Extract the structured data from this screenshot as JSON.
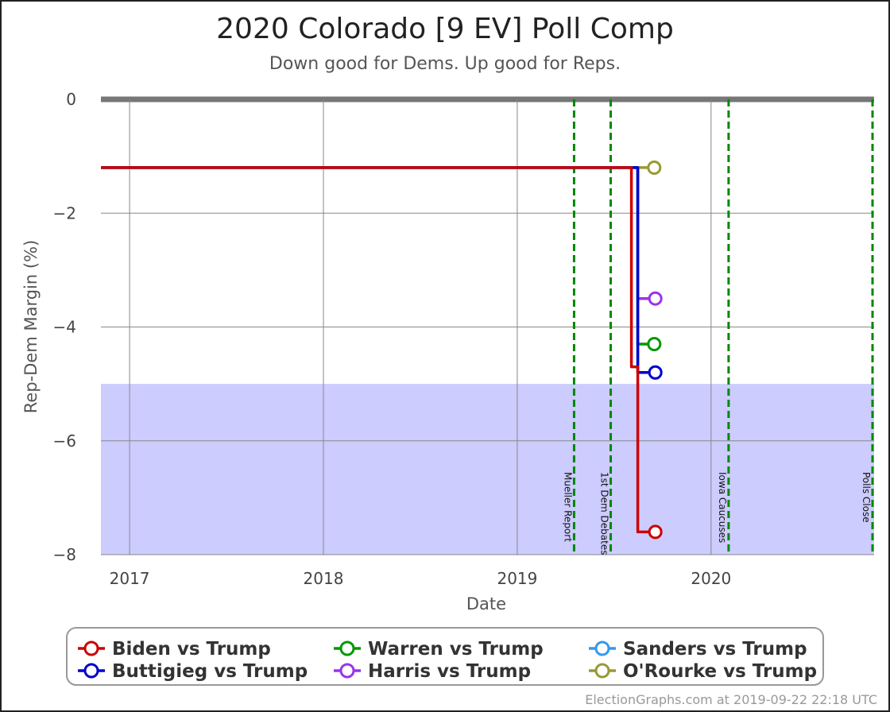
{
  "chart_data": {
    "type": "line",
    "title": "2020 Colorado [9 EV] Poll Comp",
    "subtitle": "Down good for Dems. Up good for Reps.",
    "xlabel": "Date",
    "ylabel": "Rep-Dem Margin (%)",
    "x_ticks": [
      "2017",
      "2018",
      "2019",
      "2020"
    ],
    "y_ticks": [
      0,
      -2,
      -4,
      -6,
      -8
    ],
    "ylim": [
      -8,
      0
    ],
    "xlim": [
      "2016-11-08",
      "2020-11-03"
    ],
    "grid": true,
    "shaded_region": {
      "from": -8,
      "to": -5,
      "color": "#ccccff"
    },
    "events": [
      {
        "label": "Mueller Report",
        "date": "2019-04-18"
      },
      {
        "label": "1st Dem Debates",
        "date": "2019-06-26"
      },
      {
        "label": "Iowa Caucuses",
        "date": "2020-02-03"
      },
      {
        "label": "Polls Close",
        "date": "2020-11-03"
      }
    ],
    "series": [
      {
        "name": "Biden vs Trump",
        "color": "#cc0000",
        "points": [
          [
            "2016-11-08",
            -1.2
          ],
          [
            "2019-08-04",
            -1.2
          ],
          [
            "2019-08-04",
            -4.7
          ],
          [
            "2019-08-16",
            -4.7
          ],
          [
            "2019-08-16",
            -7.6
          ],
          [
            "2019-09-18",
            -7.6
          ]
        ]
      },
      {
        "name": "Buttigieg vs Trump",
        "color": "#0000cc",
        "points": [
          [
            "2016-11-08",
            -1.2
          ],
          [
            "2019-08-16",
            -1.2
          ],
          [
            "2019-08-16",
            -4.8
          ],
          [
            "2019-09-18",
            -4.8
          ]
        ]
      },
      {
        "name": "Warren vs Trump",
        "color": "#009900",
        "points": [
          [
            "2016-11-08",
            -1.2
          ],
          [
            "2019-08-16",
            -1.2
          ],
          [
            "2019-08-16",
            -4.3
          ],
          [
            "2019-09-16",
            -4.3
          ]
        ]
      },
      {
        "name": "Harris vs Trump",
        "color": "#9933ee",
        "points": [
          [
            "2016-11-08",
            -1.2
          ],
          [
            "2019-08-16",
            -1.2
          ],
          [
            "2019-08-16",
            -3.5
          ],
          [
            "2019-09-18",
            -3.5
          ]
        ]
      },
      {
        "name": "Sanders vs Trump",
        "color": "#3399ee",
        "points": [
          [
            "2016-11-08",
            -1.2
          ],
          [
            "2019-08-16",
            -1.2
          ],
          [
            "2019-08-16",
            -4.8
          ],
          [
            "2019-09-18",
            -4.8
          ]
        ]
      },
      {
        "name": "O'Rourke vs Trump",
        "color": "#999933",
        "points": [
          [
            "2016-11-08",
            -1.2
          ],
          [
            "2019-09-16",
            -1.2
          ]
        ]
      }
    ],
    "legend_placement": "bottom"
  },
  "footer": "ElectionGraphs.com at 2019-09-22 22:18 UTC"
}
